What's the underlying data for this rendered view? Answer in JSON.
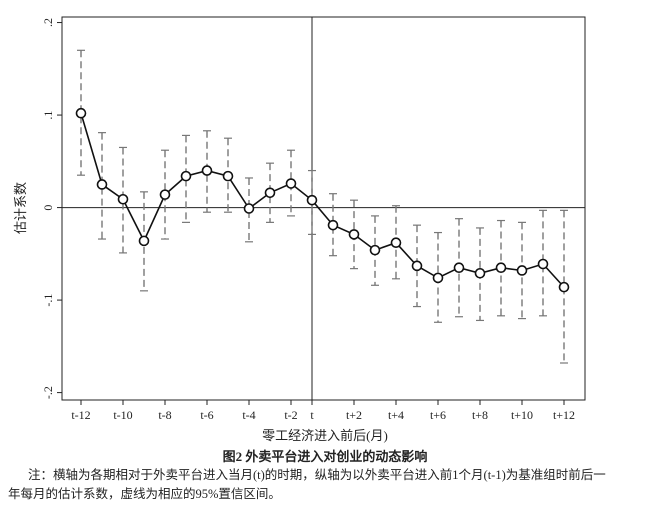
{
  "chart_data": {
    "type": "errorbar-line",
    "title": "图2  外卖平台进入对创业的动态影响",
    "x_label": "零工经济进入前后(月)",
    "y_label": "估计系数",
    "note": "注：横轴为各期相对于外卖平台进入当月(t)的时期，纵轴为以外卖平台进入前1个月(t-1)为基准组时前后一年每月的估计系数，虚线为相应的95%置信区间。",
    "categories": [
      "t-12",
      null,
      "t-10",
      null,
      "t-8",
      null,
      "t-6",
      null,
      "t-4",
      null,
      "t-2",
      "t",
      null,
      "t+2",
      null,
      "t+4",
      null,
      "t+6",
      null,
      "t+8",
      null,
      "t+10",
      null,
      "t+12"
    ],
    "reference_line_x": "t",
    "series": [
      {
        "name": "估计系数",
        "color": "#111111",
        "values": [
          0.102,
          0.025,
          0.009,
          -0.036,
          0.014,
          0.034,
          0.04,
          0.034,
          -0.001,
          0.016,
          0.026,
          0.008,
          -0.019,
          -0.029,
          -0.046,
          -0.038,
          -0.063,
          -0.076,
          -0.065,
          -0.071,
          -0.065,
          -0.068,
          -0.061,
          -0.086
        ],
        "ci_upper": [
          0.17,
          0.081,
          0.065,
          0.017,
          0.062,
          0.078,
          0.083,
          0.075,
          0.032,
          0.048,
          0.062,
          0.04,
          0.015,
          0.008,
          -0.009,
          0.002,
          -0.019,
          -0.027,
          -0.012,
          -0.022,
          -0.014,
          -0.016,
          -0.003,
          -0.003
        ],
        "ci_lower": [
          0.035,
          -0.034,
          -0.049,
          -0.09,
          -0.034,
          -0.016,
          -0.005,
          -0.005,
          -0.037,
          -0.016,
          -0.009,
          -0.029,
          -0.052,
          -0.066,
          -0.084,
          -0.077,
          -0.107,
          -0.124,
          -0.118,
          -0.122,
          -0.117,
          -0.12,
          -0.117,
          -0.168
        ],
        "ci_color": "#777777"
      }
    ],
    "ylim": [
      -0.208,
      0.206
    ],
    "yticks": [
      {
        "value": 0.2,
        "label": ".2"
      },
      {
        "value": 0.1,
        "label": ".1"
      },
      0,
      {
        "value": -0.1,
        "label": "-.1"
      },
      {
        "value": -0.2,
        "label": "-.2"
      }
    ]
  }
}
